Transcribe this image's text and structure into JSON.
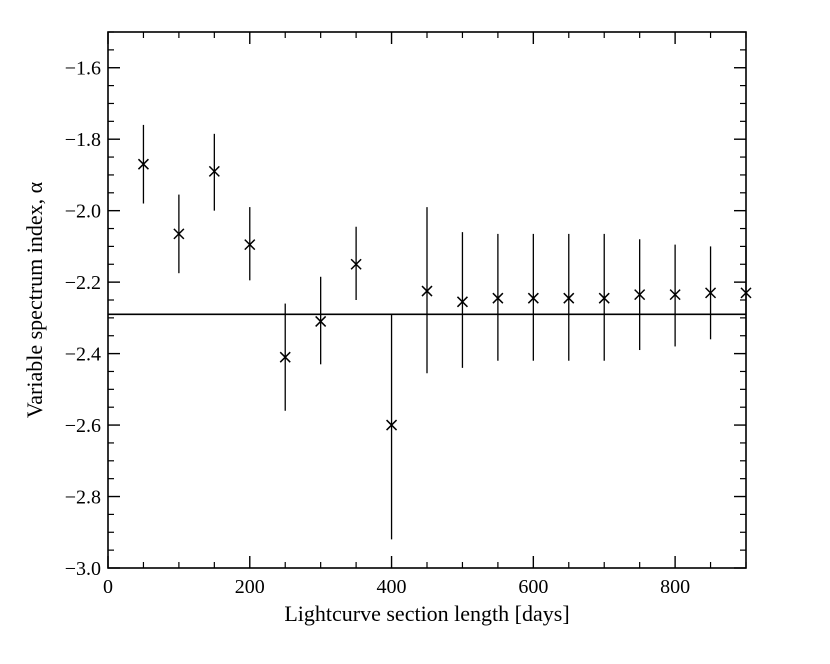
{
  "chart_data": {
    "type": "scatter",
    "title": "",
    "xlabel": "Lightcurve section length [days]",
    "ylabel": "Variable spectrum index, α",
    "xlim": [
      0,
      900
    ],
    "ylim": [
      -3.0,
      -1.5
    ],
    "x_ticks": [
      0,
      200,
      400,
      600,
      800
    ],
    "x_tick_labels": [
      "0",
      "200",
      "400",
      "600",
      "800"
    ],
    "y_ticks": [
      -3.0,
      -2.8,
      -2.6,
      -2.4,
      -2.2,
      -2.0,
      -1.8,
      -1.6
    ],
    "y_tick_labels": [
      "−3.0",
      "−2.8",
      "−2.6",
      "−2.4",
      "−2.2",
      "−2.0",
      "−1.8",
      "−1.6"
    ],
    "grid": false,
    "reference_line": {
      "y": -2.29
    },
    "series": [
      {
        "marker": "x",
        "x": [
          50,
          100,
          150,
          200,
          250,
          300,
          350,
          400,
          450,
          500,
          550,
          600,
          650,
          700,
          750,
          800,
          850,
          900
        ],
        "y": [
          -1.87,
          -2.065,
          -1.89,
          -2.095,
          -2.41,
          -2.31,
          -2.15,
          -2.6,
          -2.225,
          -2.255,
          -2.245,
          -2.245,
          -2.245,
          -2.245,
          -2.235,
          -2.235,
          -2.23,
          -2.23
        ],
        "err_low": [
          -1.98,
          -2.175,
          -2.0,
          -2.195,
          -2.56,
          -2.43,
          -2.25,
          -2.92,
          -2.455,
          -2.44,
          -2.42,
          -2.42,
          -2.42,
          -2.42,
          -2.39,
          -2.38,
          -2.36,
          -2.36
        ],
        "err_high": [
          -1.76,
          -1.955,
          -1.785,
          -1.99,
          -2.26,
          -2.185,
          -2.045,
          -2.29,
          -1.99,
          -2.06,
          -2.065,
          -2.065,
          -2.065,
          -2.065,
          -2.08,
          -2.095,
          -2.1,
          -2.1
        ]
      }
    ]
  }
}
